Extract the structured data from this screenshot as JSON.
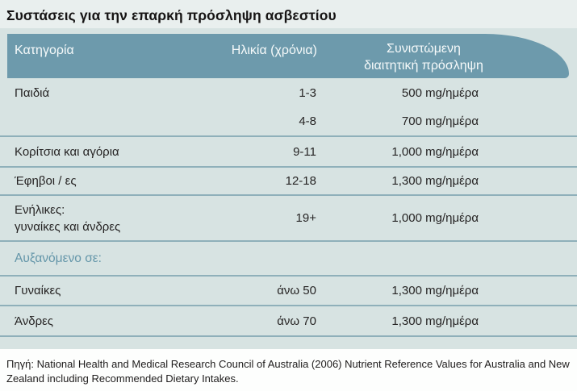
{
  "title": "Συστάσεις για την επαρκή πρόσληψη ασβεστίου",
  "table": {
    "headers": {
      "category": "Κατηγορία",
      "age": "Ηλικία (χρόνια)",
      "intake_line1": "Συνιστώμενη",
      "intake_line2": "διαιτητική πρόσληψη"
    },
    "rows": [
      {
        "category": "Παιδιά",
        "age": "1-3",
        "intake": "500 mg/ημέρα"
      },
      {
        "category": "",
        "age": "4-8",
        "intake": "700 mg/ημέρα"
      },
      {
        "category": "Κορίτσια και αγόρια",
        "age": "9-11",
        "intake": "1,000 mg/ημέρα"
      },
      {
        "category": "Έφηβοι / ες",
        "age": "12-18",
        "intake": "1,300 mg/ημέρα"
      },
      {
        "category": "Ενήλικες:",
        "category_line2": "γυναίκες και άνδρες",
        "age": "19+",
        "intake": "1,000 mg/ημέρα"
      },
      {
        "section_label": "Αυξανόμενο σε:"
      },
      {
        "category": "Γυναίκες",
        "age": "άνω 50",
        "intake": "1,300 mg/ημέρα"
      },
      {
        "category": "Άνδρες",
        "age": "άνω 70",
        "intake": "1,300 mg/ημέρα"
      }
    ]
  },
  "source": "Πηγή: National Health and Medical Research Council of Australia (2006) Nutrient Reference Values for Australia and New Zealand including Recommended Dietary Intakes.",
  "colors": {
    "header_bg": "#6d9aac",
    "panel_bg": "#d7e3e2",
    "top_band_bg": "#e9efee",
    "separator": "#8fb0ba",
    "section_text": "#6496a9"
  }
}
